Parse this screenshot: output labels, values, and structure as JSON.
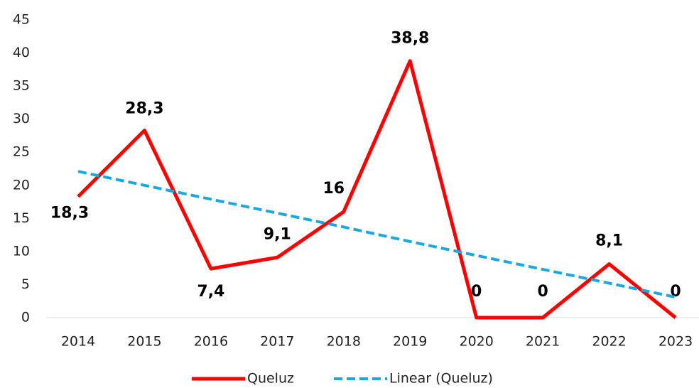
{
  "chart_data": {
    "type": "line",
    "categories": [
      "2014",
      "2015",
      "2016",
      "2017",
      "2018",
      "2019",
      "2020",
      "2021",
      "2022",
      "2023"
    ],
    "series": [
      {
        "name": "Queluz",
        "color": "#ff0000",
        "style": "solid",
        "values": [
          18.3,
          28.3,
          7.4,
          9.1,
          16,
          38.8,
          0,
          0,
          8.1,
          0
        ],
        "value_labels": [
          "18,3",
          "28,3",
          "7,4",
          "9,1",
          "16",
          "38,8",
          "0",
          "0",
          "8,1",
          "0"
        ]
      },
      {
        "name": "Linear (Queluz)",
        "color": "#1aa8e0",
        "style": "dashed",
        "values": [
          22.1,
          20.0,
          17.9,
          15.8,
          13.7,
          11.5,
          9.4,
          7.3,
          5.2,
          3.1
        ]
      }
    ],
    "ylim": [
      0,
      45
    ],
    "yticks": [
      0,
      5,
      10,
      15,
      20,
      25,
      30,
      35,
      40,
      45
    ],
    "grid": false
  }
}
